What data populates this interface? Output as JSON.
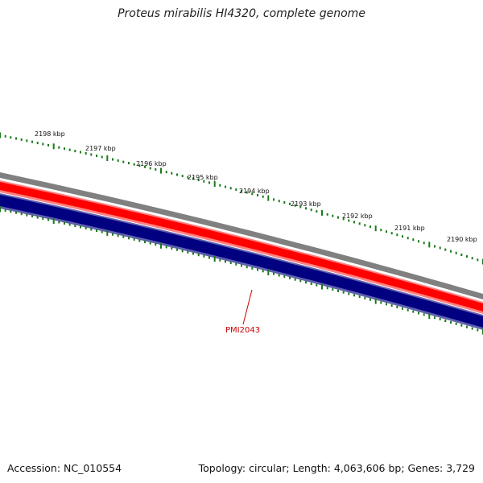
{
  "title": "Proteus mirabilis HI4320, complete genome",
  "footer": {
    "accession": "Accession: NC_010554",
    "summary": "Topology: circular; Length: 4,063,606 bp; Genes: 3,729"
  },
  "ruler": {
    "labels": [
      "2198 kbp",
      "2197 kbp",
      "2196 kbp",
      "2195 kbp",
      "2194 kbp",
      "2193 kbp",
      "2192 kbp",
      "2191 kbp",
      "2190 kbp"
    ]
  },
  "gene_label": "PMI2043",
  "colors": {
    "backbone": "#808080",
    "forward_strand": "#ff0000",
    "forward_strand_light": "#ff8080",
    "reverse_strand": "#000080",
    "reverse_strand_light": "#6060b0",
    "ticks": "#1a7a1a",
    "gene_label": "#cc0000"
  }
}
